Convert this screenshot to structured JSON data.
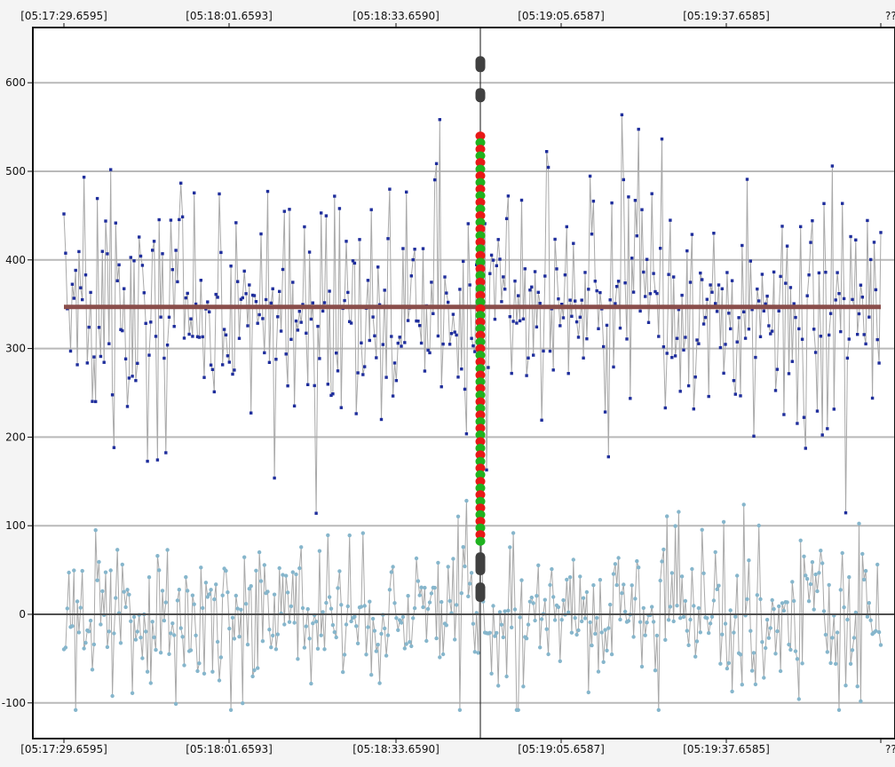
{
  "chart_data": {
    "type": "scatter",
    "title": "",
    "xlabel": "",
    "ylabel": "",
    "x_tick_labels": [
      "[05:17:29.6595]",
      "[05:18:01.6593]",
      "[05:18:33.6590]",
      "[05:19:05.6587]",
      "[05:19:37.6585]",
      "??"
    ],
    "y_ticks": [
      -100,
      0,
      100,
      200,
      300,
      400,
      500,
      600
    ],
    "ylim": [
      -140,
      665
    ],
    "grid": true,
    "n_points": 490,
    "series": [
      {
        "name": "",
        "color": "#1f2e9c",
        "marker": "square",
        "center": 347,
        "spread": 60,
        "min": 114,
        "max": 631
      },
      {
        "name": "",
        "color": "#86b6cc",
        "marker": "circle",
        "center": 2,
        "spread": 40,
        "min": -108,
        "max": 146
      }
    ],
    "reference_lines": [
      {
        "y": 347,
        "color": "#8a4e4b"
      },
      {
        "y": 0,
        "color": "#505050"
      }
    ],
    "cursor": {
      "x_index": 240,
      "stack_top": 630,
      "stack_bottom": 14,
      "colors": [
        "#e81818",
        "#1fb21f"
      ],
      "cap_color": "#404040"
    }
  }
}
